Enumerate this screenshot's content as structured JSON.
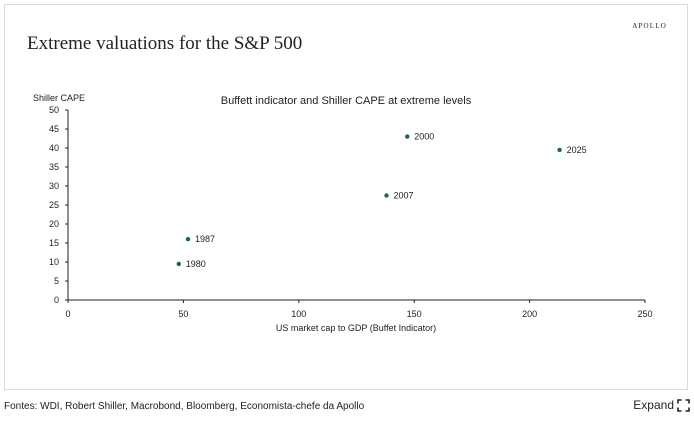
{
  "card": {
    "brand": "APOLLO",
    "headline": "Extreme valuations for the S&P 500"
  },
  "footer": {
    "source": "Fontes: WDI, Robert Shiller, Macrobond, Bloomberg, Economista-chefe da Apollo",
    "expand_label": "Expand"
  },
  "colors": {
    "marker": "#1a6b45",
    "axis": "#222222"
  },
  "chart_data": {
    "type": "scatter",
    "title": "Buffett indicator and Shiller CAPE at extreme levels",
    "xlabel": "US market cap to GDP (Buffet Indicator)",
    "ylabel": "Shiller CAPE",
    "xlim": [
      0,
      250
    ],
    "ylim": [
      0,
      50
    ],
    "xticks": [
      0,
      50,
      100,
      150,
      200,
      250
    ],
    "yticks": [
      0,
      5,
      10,
      15,
      20,
      25,
      30,
      35,
      40,
      45,
      50
    ],
    "grid": false,
    "points": [
      {
        "label": "1980",
        "x": 48,
        "y": 9.5
      },
      {
        "label": "1987",
        "x": 52,
        "y": 16
      },
      {
        "label": "2000",
        "x": 147,
        "y": 43
      },
      {
        "label": "2007",
        "x": 138,
        "y": 27.5
      },
      {
        "label": "2025",
        "x": 213,
        "y": 39.5
      }
    ]
  }
}
